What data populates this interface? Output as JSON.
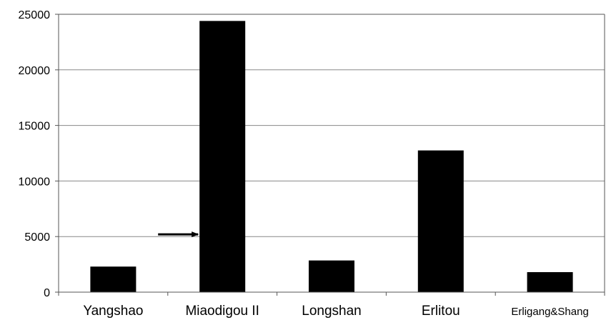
{
  "chart_data": {
    "type": "bar",
    "title": "",
    "xlabel": "",
    "ylabel": "",
    "categories": [
      "Yangshao",
      "Miaodigou II",
      "Longshan",
      "Erlitou",
      "Erligang&Shang"
    ],
    "values": [
      2300,
      24400,
      2850,
      12750,
      1800
    ],
    "ylim": [
      0,
      25000
    ],
    "yticks": [
      0,
      5000,
      10000,
      15000,
      20000,
      25000
    ],
    "grid": true,
    "legend": "none",
    "bar_color": "#000000",
    "annotations": [
      {
        "type": "arrow",
        "category": "Miaodigou II",
        "value": 5200,
        "direction": "right"
      }
    ]
  }
}
